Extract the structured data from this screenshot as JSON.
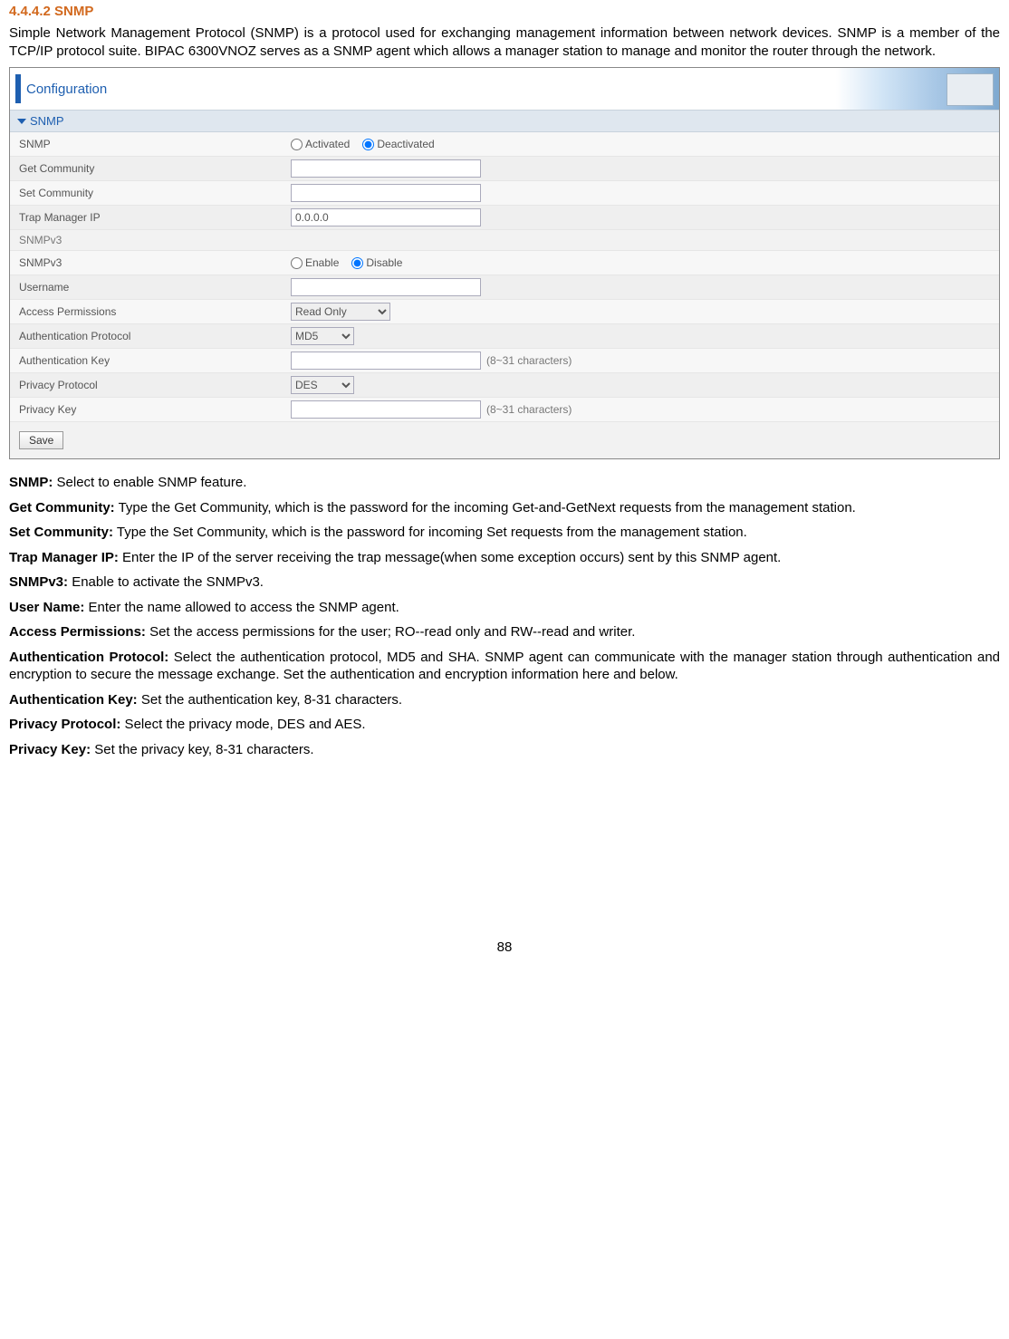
{
  "heading": "4.4.4.2 SNMP",
  "intro": "Simple Network Management Protocol (SNMP) is a protocol used for exchanging management information between network devices. SNMP is a member of the TCP/IP protocol suite. BIPAC 6300VNOZ serves as a SNMP agent which allows a manager station to manage and monitor the router through the network.",
  "shot": {
    "conf_title": "Configuration",
    "section1": "SNMP",
    "snmp_label": "SNMP",
    "activated": "Activated",
    "deactivated": "Deactivated",
    "get_community": "Get Community",
    "set_community": "Set Community",
    "trap_ip_label": "Trap Manager IP",
    "trap_ip_value": "0.0.0.0",
    "section2": "SNMPv3",
    "snmpv3_label": "SNMPv3",
    "enable": "Enable",
    "disable": "Disable",
    "username": "Username",
    "access_perm": "Access Permissions",
    "access_perm_val": "Read Only",
    "auth_proto": "Authentication Protocol",
    "auth_proto_val": "MD5",
    "auth_key": "Authentication Key",
    "chars_hint": "(8~31 characters)",
    "priv_proto": "Privacy Protocol",
    "priv_proto_val": "DES",
    "priv_key": "Privacy Key",
    "save": "Save"
  },
  "fields": [
    {
      "label": "SNMP:",
      "text": " Select to enable SNMP feature."
    },
    {
      "label": "Get Community:",
      "text": " Type the Get Community, which is the password for the incoming Get-and-GetNext requests from the management station."
    },
    {
      "label": "Set Community:",
      "text": " Type the Set Community, which is the password for incoming Set requests from the management station."
    },
    {
      "label": "Trap Manager IP:",
      "text": " Enter the IP of the server receiving the trap message(when some exception occurs) sent by this SNMP agent."
    },
    {
      "label": "SNMPv3:",
      "text": " Enable to activate the SNMPv3."
    },
    {
      "label": "User Name:",
      "text": " Enter the name allowed to access the SNMP agent."
    },
    {
      "label": "Access Permissions:",
      "text": " Set the access permissions for the user; RO--read only and RW--read and writer."
    },
    {
      "label": "Authentication Protocol:",
      "text": " Select the authentication protocol, MD5 and SHA. SNMP agent can communicate with the manager station through authentication and encryption to secure the message exchange. Set the authentication and encryption information here and below."
    },
    {
      "label": "Authentication Key:",
      "text": " Set the authentication key, 8-31 characters."
    },
    {
      "label": "Privacy Protocol:",
      "text": " Select the privacy mode, DES and AES."
    },
    {
      "label": "Privacy Key:",
      "text": " Set the privacy key, 8-31 characters."
    }
  ],
  "pagenum": "88"
}
